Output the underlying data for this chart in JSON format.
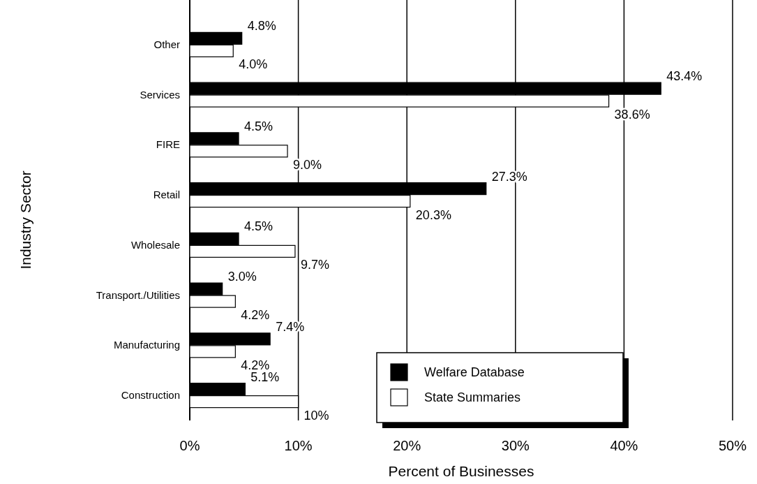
{
  "chart_data": {
    "type": "bar",
    "orientation": "horizontal",
    "xlabel": "Percent of Businesses",
    "ylabel": "Industry Sector",
    "categories": [
      "Other",
      "Services",
      "FIRE",
      "Retail",
      "Wholesale",
      "Transport./Utilities",
      "Manufacturing",
      "Construction"
    ],
    "series": [
      {
        "name": "Welfare Database",
        "color": "#000000",
        "values": [
          4.8,
          43.4,
          4.5,
          27.3,
          4.5,
          3.0,
          7.4,
          5.1
        ],
        "value_labels": [
          "4.8%",
          "43.4%",
          "4.5%",
          "27.3%",
          "4.5%",
          "3.0%",
          "7.4%",
          "5.1%"
        ]
      },
      {
        "name": "State Summaries",
        "color": "#ffffff",
        "values": [
          4.0,
          38.6,
          9.0,
          20.3,
          9.7,
          4.2,
          4.2,
          10
        ],
        "value_labels": [
          "4.0%",
          "38.6%",
          "9.0%",
          "20.3%",
          "9.7%",
          "4.2%",
          "4.2%",
          "10%"
        ]
      }
    ],
    "xlim": [
      0,
      50
    ],
    "xticks": [
      {
        "value": 0,
        "label": "0%"
      },
      {
        "value": 10,
        "label": "10%"
      },
      {
        "value": 20,
        "label": "20%"
      },
      {
        "value": 30,
        "label": "30%"
      },
      {
        "value": 40,
        "label": "40%"
      },
      {
        "value": 50,
        "label": "50%"
      }
    ],
    "grid": "x",
    "legend": "bottom right"
  }
}
